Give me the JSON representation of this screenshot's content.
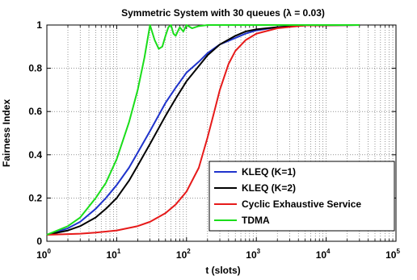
{
  "chart_data": {
    "type": "line",
    "title": "Symmetric System with 30 queues (λ = 0.03)",
    "xlabel": "t (slots)",
    "ylabel": "Fairness Index",
    "xscale": "log",
    "xlim": [
      1,
      100000
    ],
    "ylim": [
      0,
      1
    ],
    "x_ticks": [
      {
        "base": "10",
        "exp": "0"
      },
      {
        "base": "10",
        "exp": "1"
      },
      {
        "base": "10",
        "exp": "2"
      },
      {
        "base": "10",
        "exp": "3"
      },
      {
        "base": "10",
        "exp": "4"
      },
      {
        "base": "10",
        "exp": "5"
      }
    ],
    "y_ticks": [
      "0",
      "0.2",
      "0.4",
      "0.6",
      "0.8",
      "1"
    ],
    "grid": true,
    "legend_position": "bottom-right",
    "series": [
      {
        "name": "KLEQ (K=1)",
        "color": "#1f33cc",
        "x": [
          1,
          2,
          3,
          5,
          7,
          10,
          15,
          20,
          30,
          50,
          70,
          100,
          150,
          200,
          300,
          500,
          700,
          1000,
          2000,
          5000,
          30000
        ],
        "y": [
          0.03,
          0.06,
          0.09,
          0.15,
          0.2,
          0.26,
          0.34,
          0.41,
          0.51,
          0.64,
          0.71,
          0.78,
          0.83,
          0.87,
          0.91,
          0.94,
          0.96,
          0.975,
          0.99,
          0.998,
          1.0
        ]
      },
      {
        "name": "KLEQ (K=2)",
        "color": "#000000",
        "x": [
          1,
          2,
          3,
          5,
          7,
          10,
          15,
          20,
          30,
          50,
          70,
          100,
          150,
          200,
          300,
          500,
          700,
          1000,
          2000,
          5000,
          30000
        ],
        "y": [
          0.03,
          0.05,
          0.07,
          0.11,
          0.15,
          0.2,
          0.28,
          0.35,
          0.45,
          0.58,
          0.66,
          0.74,
          0.81,
          0.86,
          0.91,
          0.95,
          0.97,
          0.98,
          0.99,
          0.998,
          1.0
        ]
      },
      {
        "name": "Cyclic Exhaustive Service",
        "color": "#e61a1a",
        "x": [
          1,
          3,
          5,
          10,
          20,
          30,
          50,
          70,
          100,
          150,
          200,
          250,
          300,
          400,
          500,
          700,
          1000,
          2000,
          5000,
          30000
        ],
        "y": [
          0.03,
          0.035,
          0.04,
          0.05,
          0.07,
          0.09,
          0.13,
          0.17,
          0.23,
          0.34,
          0.48,
          0.6,
          0.7,
          0.82,
          0.88,
          0.93,
          0.96,
          0.985,
          0.998,
          1.0
        ]
      },
      {
        "name": "TDMA",
        "color": "#1add1a",
        "x": [
          1,
          2,
          3,
          5,
          7,
          10,
          15,
          20,
          25,
          30,
          35,
          40,
          45,
          50,
          55,
          60,
          65,
          70,
          80,
          90,
          100,
          120,
          150,
          200,
          300,
          1000,
          30000
        ],
        "y": [
          0.03,
          0.07,
          0.11,
          0.2,
          0.27,
          0.38,
          0.55,
          0.7,
          0.85,
          1.0,
          0.93,
          0.89,
          0.9,
          0.95,
          0.99,
          1.0,
          0.96,
          0.95,
          0.99,
          0.97,
          1.0,
          0.985,
          0.995,
          1.0,
          1.0,
          1.0,
          1.0
        ]
      }
    ]
  }
}
